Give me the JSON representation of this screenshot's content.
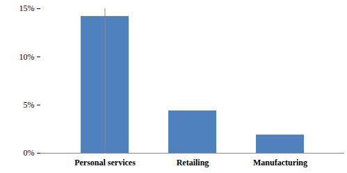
{
  "chart_data": {
    "type": "bar",
    "categories": [
      "Personal services",
      "Retailing",
      "Manufacturing"
    ],
    "values": [
      14.2,
      4.4,
      1.9
    ],
    "color": "#4f81bd",
    "ylim": [
      0,
      15
    ],
    "yticks": [
      {
        "value": 0,
        "label": "0%"
      },
      {
        "value": 5,
        "label": "5%"
      },
      {
        "value": 10,
        "label": "10%"
      },
      {
        "value": 15,
        "label": "15%"
      }
    ],
    "grid": false
  }
}
